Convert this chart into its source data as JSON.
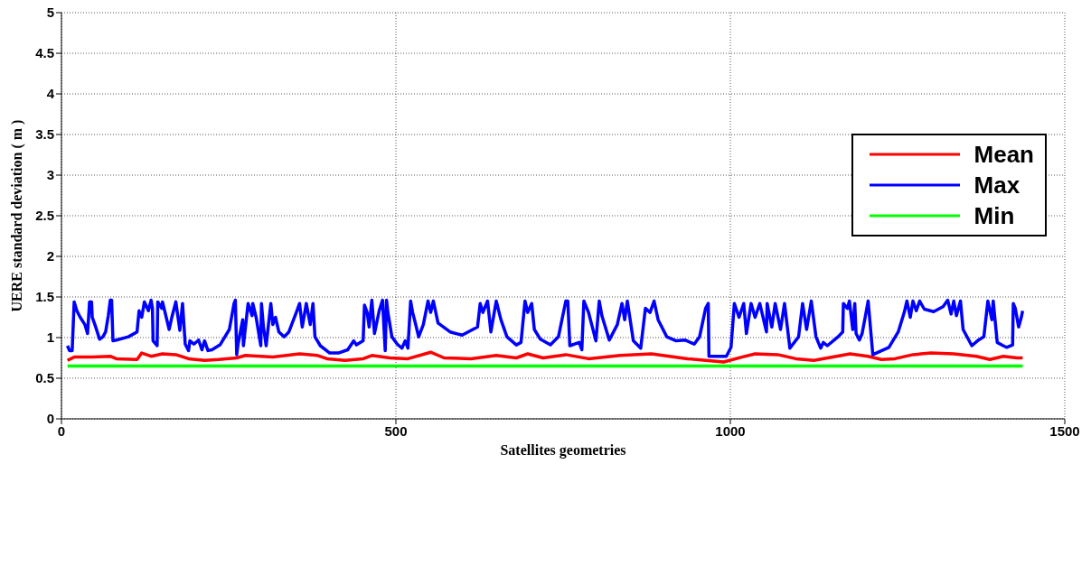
{
  "chart_data": {
    "type": "line",
    "xlabel": "Satellites geometries",
    "ylabel": "UERE standard deviation ( m )",
    "xlim": [
      0,
      1500
    ],
    "xticks": [
      0,
      500,
      1000,
      1500
    ],
    "ylim": [
      0,
      5
    ],
    "yticks": [
      0,
      0.5,
      1,
      1.5,
      2,
      2.5,
      3,
      3.5,
      4,
      4.5,
      5
    ],
    "grid": true,
    "legend": "top right",
    "marker": "none",
    "line_style": "solid",
    "series": [
      {
        "name": "Mean",
        "color": "#ff0000",
        "x": [
          9,
          19,
          46,
          73,
          82,
          113,
          120,
          134,
          151,
          171,
          190,
          214,
          235,
          262,
          275,
          316,
          356,
          383,
          397,
          424,
          451,
          464,
          491,
          518,
          552,
          572,
          612,
          650,
          680,
          697,
          720,
          754,
          788,
          835,
          882,
          936,
          963,
          990,
          1017,
          1037,
          1071,
          1098,
          1125,
          1179,
          1206,
          1226,
          1246,
          1273,
          1300,
          1334,
          1368,
          1388,
          1408,
          1429,
          1437
        ],
        "values": [
          0.72,
          0.76,
          0.76,
          0.77,
          0.74,
          0.73,
          0.81,
          0.77,
          0.8,
          0.79,
          0.74,
          0.72,
          0.73,
          0.75,
          0.78,
          0.76,
          0.8,
          0.78,
          0.74,
          0.72,
          0.74,
          0.78,
          0.75,
          0.74,
          0.82,
          0.75,
          0.74,
          0.78,
          0.75,
          0.8,
          0.75,
          0.79,
          0.74,
          0.78,
          0.8,
          0.74,
          0.72,
          0.7,
          0.76,
          0.8,
          0.79,
          0.74,
          0.72,
          0.8,
          0.77,
          0.73,
          0.74,
          0.79,
          0.81,
          0.8,
          0.77,
          0.73,
          0.77,
          0.75,
          0.75
        ]
      },
      {
        "name": "Max",
        "color": "#0000ff",
        "x": [
          9,
          12,
          16,
          19,
          23,
          28,
          35,
          39,
          42,
          45,
          46,
          50,
          57,
          62,
          66,
          70,
          73,
          75,
          77,
          82,
          100,
          113,
          116,
          120,
          124,
          130,
          134,
          136,
          137,
          143,
          144,
          150,
          151,
          156,
          161,
          165,
          171,
          177,
          181,
          185,
          190,
          192,
          198,
          205,
          210,
          214,
          219,
          225,
          237,
          251,
          258,
          260,
          262,
          264,
          271,
          272,
          279,
          285,
          286,
          291,
          298,
          299,
          302,
          306,
          313,
          316,
          320,
          325,
          333,
          340,
          352,
          356,
          360,
          366,
          372,
          376,
          379,
          387,
          401,
          414,
          428,
          437,
          441,
          451,
          453,
          457,
          460,
          464,
          468,
          475,
          480,
          484,
          486,
          488,
          494,
          502,
          509,
          514,
          518,
          522,
          525,
          529,
          534,
          541,
          548,
          552,
          556,
          563,
          581,
          599,
          622,
          626,
          630,
          637,
          642,
          650,
          657,
          666,
          680,
          687,
          693,
          697,
          703,
          707,
          716,
          731,
          743,
          754,
          757,
          760,
          774,
          778,
          781,
          788,
          799,
          804,
          808,
          819,
          831,
          838,
          842,
          846,
          855,
          866,
          873,
          880,
          886,
          892,
          905,
          919,
          932,
          946,
          954,
          963,
          967,
          968,
          994,
          1001,
          1006,
          1013,
          1020,
          1024,
          1031,
          1037,
          1044,
          1054,
          1055,
          1062,
          1067,
          1075,
          1081,
          1089,
          1102,
          1108,
          1114,
          1121,
          1128,
          1135,
          1139,
          1145,
          1161,
          1168,
          1169,
          1175,
          1178,
          1183,
          1186,
          1188,
          1193,
          1197,
          1202,
          1206,
          1213,
          1237,
          1251,
          1260,
          1264,
          1269,
          1273,
          1278,
          1283,
          1290,
          1304,
          1318,
          1325,
          1330,
          1334,
          1338,
          1344,
          1348,
          1361,
          1371,
          1379,
          1385,
          1391,
          1393,
          1399,
          1408,
          1413,
          1422,
          1423,
          1426,
          1431,
          1435,
          1437
        ],
        "values": [
          0.9,
          0.84,
          0.84,
          1.44,
          1.33,
          1.25,
          1.16,
          1.05,
          1.44,
          1.44,
          1.25,
          1.16,
          0.98,
          1.01,
          1.07,
          1.27,
          1.46,
          1.46,
          0.96,
          0.97,
          1.01,
          1.07,
          1.33,
          1.25,
          1.44,
          1.33,
          1.46,
          1.36,
          0.96,
          0.9,
          1.44,
          1.36,
          1.44,
          1.27,
          1.1,
          1.25,
          1.44,
          1.09,
          1.42,
          0.92,
          0.84,
          0.96,
          0.92,
          0.97,
          0.85,
          0.96,
          0.84,
          0.85,
          0.91,
          1.1,
          1.42,
          1.46,
          0.79,
          0.92,
          1.22,
          0.9,
          1.42,
          1.27,
          1.42,
          1.25,
          0.9,
          1.42,
          1.13,
          0.9,
          1.42,
          1.16,
          1.25,
          1.07,
          1.01,
          1.07,
          1.33,
          1.42,
          1.13,
          1.42,
          1.16,
          1.42,
          1.01,
          0.9,
          0.81,
          0.81,
          0.85,
          0.96,
          0.91,
          0.96,
          1.4,
          1.31,
          1.13,
          1.46,
          1.05,
          1.33,
          1.46,
          0.84,
          1.46,
          1.31,
          1.01,
          0.92,
          0.87,
          0.96,
          0.87,
          1.45,
          1.31,
          1.18,
          1.01,
          1.16,
          1.45,
          1.31,
          1.45,
          1.18,
          1.07,
          1.03,
          1.13,
          1.42,
          1.31,
          1.45,
          1.07,
          1.45,
          1.22,
          1.01,
          0.91,
          0.94,
          1.45,
          1.31,
          1.42,
          1.1,
          0.98,
          0.91,
          1.01,
          1.45,
          1.45,
          0.9,
          0.94,
          0.85,
          1.45,
          1.31,
          0.96,
          1.45,
          1.27,
          0.97,
          1.16,
          1.42,
          1.22,
          1.45,
          0.96,
          0.87,
          1.36,
          1.31,
          1.45,
          1.22,
          1.01,
          0.96,
          0.97,
          0.92,
          1.01,
          1.36,
          1.42,
          0.77,
          0.77,
          0.88,
          1.42,
          1.25,
          1.42,
          1.05,
          1.42,
          1.25,
          1.42,
          1.07,
          1.42,
          1.13,
          1.42,
          1.1,
          1.42,
          0.87,
          1.01,
          1.42,
          1.1,
          1.45,
          1.01,
          0.87,
          0.94,
          0.9,
          1.01,
          1.07,
          1.42,
          1.36,
          1.45,
          1.1,
          1.42,
          1.05,
          0.97,
          1.05,
          1.27,
          1.45,
          0.79,
          0.88,
          1.07,
          1.31,
          1.45,
          1.25,
          1.45,
          1.33,
          1.45,
          1.35,
          1.32,
          1.38,
          1.46,
          1.29,
          1.45,
          1.27,
          1.45,
          1.1,
          0.9,
          0.97,
          1.01,
          1.45,
          1.22,
          1.45,
          0.94,
          0.9,
          0.88,
          0.91,
          1.42,
          1.36,
          1.13,
          1.25,
          1.33
        ]
      },
      {
        "name": "Min",
        "color": "#00ff00",
        "x": [
          9,
          1437
        ],
        "values": [
          0.65,
          0.65
        ]
      }
    ]
  }
}
